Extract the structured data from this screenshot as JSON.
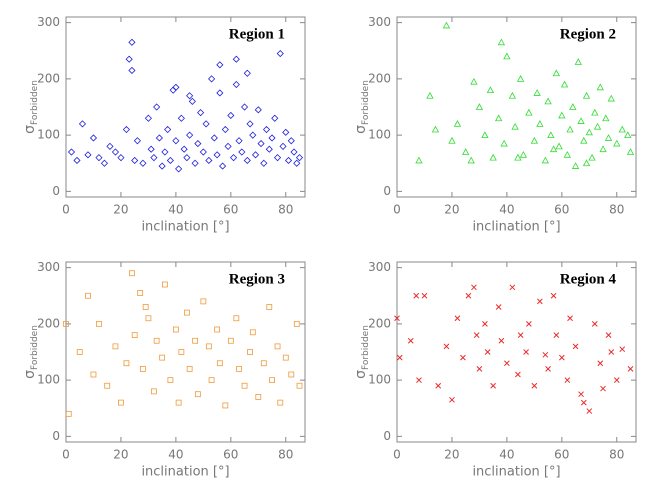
{
  "chart_data": [
    {
      "type": "scatter",
      "title": "Region 1",
      "x_label": "inclination [°]",
      "y_label": "σ",
      "y_label_sub": "Forbidden",
      "marker": "diamond",
      "color": "#1f1fe0",
      "x": [
        2,
        4,
        6,
        8,
        10,
        12,
        14,
        16,
        18,
        20,
        22,
        23,
        24,
        25,
        26,
        28,
        30,
        31,
        32,
        33,
        34,
        35,
        36,
        37,
        38,
        39,
        40,
        41,
        42,
        43,
        44,
        45,
        46,
        47,
        48,
        49,
        50,
        51,
        52,
        53,
        54,
        55,
        56,
        57,
        58,
        59,
        60,
        61,
        62,
        63,
        64,
        65,
        66,
        67,
        68,
        69,
        70,
        71,
        72,
        73,
        74,
        75,
        76,
        77,
        78,
        79,
        80,
        81,
        82,
        83,
        84,
        85,
        24,
        40,
        56,
        66,
        62,
        45
      ],
      "values": [
        70,
        55,
        120,
        65,
        95,
        60,
        50,
        80,
        70,
        60,
        110,
        235,
        265,
        55,
        90,
        50,
        130,
        75,
        60,
        150,
        95,
        45,
        70,
        110,
        55,
        180,
        90,
        40,
        130,
        75,
        60,
        100,
        160,
        50,
        85,
        140,
        70,
        120,
        55,
        200,
        95,
        65,
        175,
        45,
        110,
        80,
        135,
        60,
        235,
        90,
        70,
        150,
        55,
        120,
        100,
        65,
        145,
        85,
        50,
        110,
        75,
        95,
        130,
        60,
        245,
        80,
        105,
        55,
        90,
        70,
        50,
        60,
        215,
        185,
        225,
        210,
        190,
        170
      ],
      "xlim": [
        0,
        87
      ],
      "ylim": [
        -10,
        310
      ],
      "xticks": [
        0,
        20,
        40,
        60,
        80
      ],
      "yticks": [
        0,
        100,
        200,
        300
      ]
    },
    {
      "type": "scatter",
      "title": "Region 2",
      "x_label": "inclination [°]",
      "y_label": "σ",
      "y_label_sub": "Forbidden",
      "marker": "triangle",
      "color": "#33dd33",
      "x": [
        8,
        12,
        14,
        18,
        20,
        22,
        25,
        28,
        30,
        32,
        34,
        35,
        37,
        38,
        39,
        40,
        42,
        43,
        45,
        46,
        48,
        50,
        51,
        52,
        54,
        55,
        56,
        58,
        59,
        60,
        61,
        62,
        63,
        64,
        65,
        66,
        67,
        68,
        69,
        70,
        71,
        72,
        73,
        74,
        75,
        76,
        77,
        78,
        80,
        82,
        84,
        85,
        27,
        44,
        57,
        69
      ],
      "values": [
        55,
        170,
        110,
        295,
        90,
        120,
        70,
        195,
        150,
        100,
        180,
        60,
        130,
        265,
        85,
        240,
        170,
        115,
        200,
        65,
        140,
        90,
        175,
        120,
        55,
        160,
        100,
        210,
        80,
        135,
        190,
        65,
        110,
        150,
        45,
        230,
        125,
        90,
        170,
        105,
        60,
        140,
        115,
        185,
        75,
        130,
        95,
        165,
        85,
        110,
        100,
        70,
        55,
        60,
        75,
        50
      ],
      "xlim": [
        0,
        87
      ],
      "ylim": [
        -10,
        310
      ],
      "xticks": [
        0,
        20,
        40,
        60,
        80
      ],
      "yticks": [
        0,
        100,
        200,
        300
      ]
    },
    {
      "type": "scatter",
      "title": "Region 3",
      "x_label": "inclination [°]",
      "y_label": "σ",
      "y_label_sub": "Forbidden",
      "marker": "square",
      "color": "#f0993a",
      "x": [
        0,
        1,
        5,
        8,
        10,
        12,
        15,
        18,
        20,
        22,
        24,
        25,
        27,
        28,
        29,
        30,
        32,
        33,
        35,
        36,
        38,
        40,
        41,
        42,
        44,
        45,
        47,
        48,
        50,
        52,
        53,
        55,
        56,
        58,
        60,
        62,
        63,
        65,
        67,
        68,
        70,
        72,
        74,
        75,
        77,
        78,
        80,
        82,
        84,
        85
      ],
      "values": [
        200,
        40,
        150,
        250,
        110,
        200,
        90,
        160,
        60,
        130,
        290,
        180,
        255,
        120,
        230,
        210,
        80,
        170,
        140,
        270,
        100,
        190,
        60,
        150,
        220,
        120,
        170,
        75,
        240,
        160,
        100,
        190,
        130,
        55,
        170,
        210,
        120,
        90,
        150,
        185,
        70,
        130,
        230,
        100,
        160,
        60,
        140,
        110,
        200,
        90
      ],
      "xlim": [
        0,
        87
      ],
      "ylim": [
        -10,
        310
      ],
      "xticks": [
        0,
        20,
        40,
        60,
        80
      ],
      "yticks": [
        0,
        100,
        200,
        300
      ]
    },
    {
      "type": "scatter",
      "title": "Region 4",
      "x_label": "inclination [°]",
      "y_label": "σ",
      "y_label_sub": "Forbidden",
      "marker": "cross",
      "color": "#ee2222",
      "x": [
        0,
        1,
        5,
        7,
        8,
        10,
        15,
        18,
        20,
        22,
        24,
        26,
        28,
        29,
        30,
        32,
        33,
        35,
        37,
        38,
        40,
        42,
        44,
        45,
        47,
        48,
        50,
        52,
        54,
        55,
        57,
        58,
        60,
        62,
        63,
        65,
        67,
        68,
        70,
        72,
        74,
        75,
        77,
        78,
        80,
        82,
        85
      ],
      "values": [
        210,
        140,
        170,
        250,
        100,
        250,
        90,
        160,
        65,
        210,
        140,
        250,
        265,
        180,
        120,
        200,
        150,
        90,
        230,
        170,
        130,
        265,
        110,
        180,
        150,
        200,
        90,
        240,
        145,
        120,
        250,
        180,
        140,
        100,
        210,
        160,
        75,
        60,
        45,
        200,
        130,
        85,
        180,
        150,
        100,
        155,
        120
      ],
      "xlim": [
        0,
        87
      ],
      "ylim": [
        -10,
        310
      ],
      "xticks": [
        0,
        20,
        40,
        60,
        80
      ],
      "yticks": [
        0,
        100,
        200,
        300
      ]
    }
  ]
}
